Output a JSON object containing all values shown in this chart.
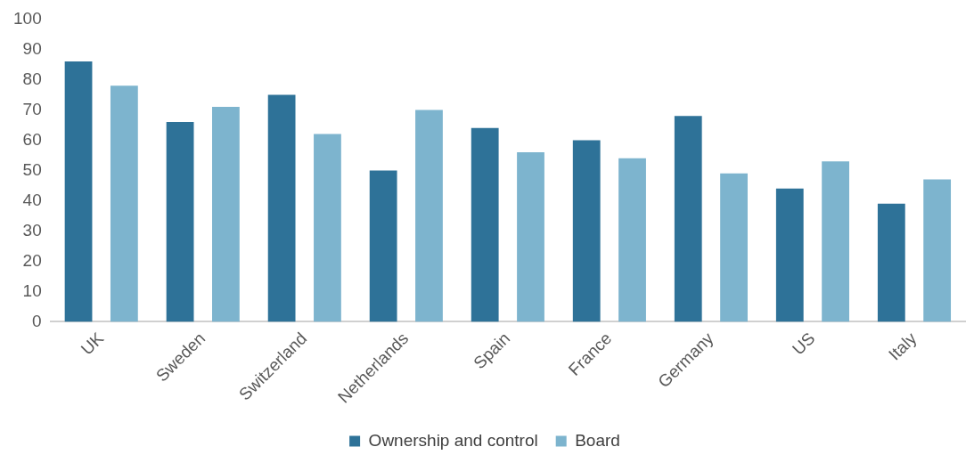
{
  "chart_data": {
    "type": "bar",
    "categories": [
      "UK",
      "Sweden",
      "Switzerland",
      "Netherlands",
      "Spain",
      "France",
      "Germany",
      "US",
      "Italy"
    ],
    "series": [
      {
        "name": "Ownership and control",
        "color": "#2e7298",
        "values": [
          86,
          66,
          75,
          50,
          64,
          60,
          68,
          44,
          39
        ]
      },
      {
        "name": "Board",
        "color": "#7db4ce",
        "values": [
          78,
          71,
          62,
          70,
          56,
          54,
          49,
          53,
          47
        ]
      }
    ],
    "ylim": [
      0,
      100
    ],
    "yticks": [
      0,
      10,
      20,
      30,
      40,
      50,
      60,
      70,
      80,
      90,
      100
    ],
    "grid": false,
    "legend": "bottom"
  }
}
